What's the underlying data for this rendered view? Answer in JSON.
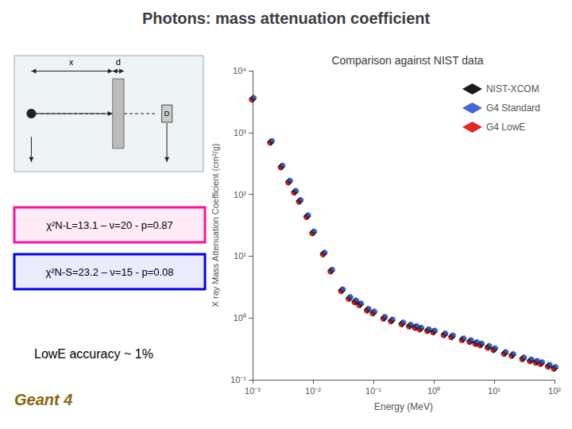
{
  "chart_data": {
    "type": "scatter",
    "title": "Photons: mass attenuation coefficient",
    "subtitle": "Comparison against NIST data",
    "xlabel": "Energy (MeV)",
    "ylabel": "X ray Mass Attenuation Coefficient (cm²/g)",
    "log": true,
    "grid": false,
    "legend": "upper right",
    "xlim": [
      0.001,
      100
    ],
    "ylim": [
      0.1,
      10000
    ],
    "xticks": [
      {
        "value": 0.001,
        "label": "10⁻³"
      },
      {
        "value": 0.01,
        "label": "10⁻²"
      },
      {
        "value": 0.1,
        "label": "10⁻¹"
      },
      {
        "value": 1,
        "label": "10⁰"
      },
      {
        "value": 10,
        "label": "10¹"
      },
      {
        "value": 100,
        "label": "10²"
      }
    ],
    "yticks": [
      {
        "value": 0.1,
        "label": "10⁻¹"
      },
      {
        "value": 1,
        "label": "10⁰"
      },
      {
        "value": 10,
        "label": "10¹"
      },
      {
        "value": 100,
        "label": "10²"
      },
      {
        "value": 1000,
        "label": "10³"
      },
      {
        "value": 10000,
        "label": "10⁴"
      }
    ],
    "x": [
      0.001,
      0.002,
      0.003,
      0.004,
      0.005,
      0.006,
      0.008,
      0.01,
      0.015,
      0.02,
      0.03,
      0.04,
      0.05,
      0.06,
      0.08,
      0.1,
      0.15,
      0.2,
      0.3,
      0.4,
      0.5,
      0.6,
      0.8,
      1.0,
      1.5,
      2.0,
      3.0,
      4.0,
      5.0,
      6.0,
      8.0,
      10.0,
      15.0,
      20.0,
      30.0,
      40.0,
      50.0,
      60.0,
      80.0,
      100.0
    ],
    "series": [
      {
        "name": "NIST-XCOM",
        "color": "#1a1a1a",
        "marker": "diamond",
        "values": [
          3500,
          700,
          280,
          160,
          110,
          78,
          44,
          24,
          11,
          5.8,
          2.8,
          2.1,
          1.85,
          1.65,
          1.35,
          1.22,
          1.0,
          0.91,
          0.81,
          0.75,
          0.71,
          0.67,
          0.63,
          0.6,
          0.54,
          0.5,
          0.45,
          0.42,
          0.39,
          0.37,
          0.34,
          0.31,
          0.27,
          0.25,
          0.22,
          0.205,
          0.195,
          0.185,
          0.168,
          0.155
        ]
      },
      {
        "name": "G4 Standard",
        "color": "#3355CC",
        "marker": "diamond",
        "values": [
          3500,
          700,
          280,
          160,
          110,
          78,
          44,
          24,
          11,
          5.8,
          2.8,
          2.1,
          1.85,
          1.65,
          1.35,
          1.22,
          1.0,
          0.91,
          0.81,
          0.75,
          0.71,
          0.67,
          0.63,
          0.6,
          0.54,
          0.5,
          0.45,
          0.42,
          0.39,
          0.37,
          0.34,
          0.31,
          0.27,
          0.25,
          0.22,
          0.205,
          0.195,
          0.185,
          0.168,
          0.155
        ]
      },
      {
        "name": "G4 LowE",
        "color": "#DD1111",
        "marker": "diamond",
        "values": [
          3500,
          700,
          280,
          160,
          110,
          78,
          44,
          24,
          11,
          5.8,
          2.8,
          2.1,
          1.85,
          1.65,
          1.35,
          1.22,
          1.0,
          0.91,
          0.81,
          0.75,
          0.71,
          0.67,
          0.63,
          0.6,
          0.54,
          0.5,
          0.45,
          0.42,
          0.39,
          0.37,
          0.34,
          0.31,
          0.27,
          0.25,
          0.22,
          0.205,
          0.195,
          0.185,
          0.168,
          0.155
        ]
      }
    ],
    "annotations": [
      {
        "text": "χ²N-L=13.1 – ν=20 - p=0.87",
        "color": "#FF1199"
      },
      {
        "text": "χ²N-S=23.2 – ν=15 - p=0.08",
        "color": "#0000EE"
      },
      {
        "text": "LowE accuracy ~ 1%"
      },
      {
        "text": "Geant 4",
        "color": "#8B6510"
      },
      {
        "text": "x"
      },
      {
        "text": "d"
      },
      {
        "text": "D"
      }
    ]
  }
}
